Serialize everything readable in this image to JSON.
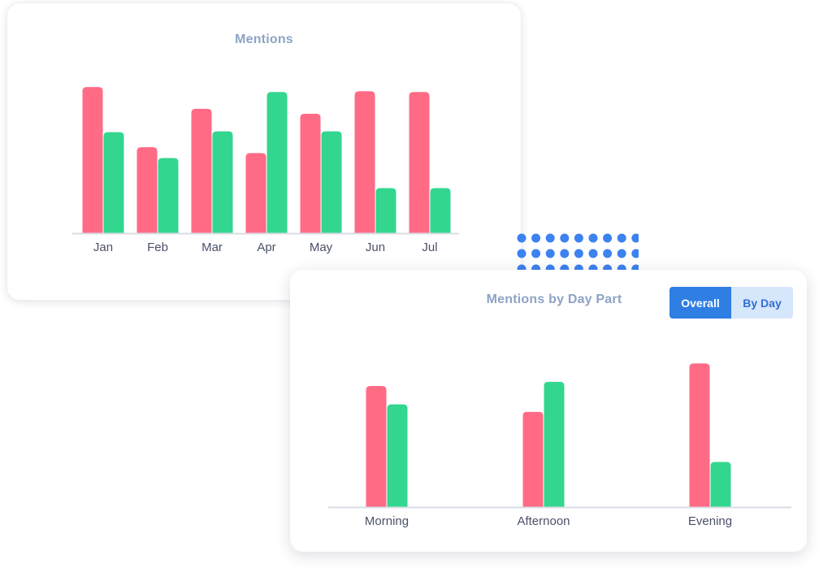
{
  "colors": {
    "series_a": "#ff6b85",
    "series_b": "#33d68f",
    "dots": "#3c82f0",
    "axis": "#d9dde5",
    "tick_text": "#4a5068"
  },
  "toggle": {
    "overall_label": "Overall",
    "by_day_label": "By Day",
    "selected": "Overall"
  },
  "chart_data": [
    {
      "type": "bar",
      "title": "Mentions",
      "categories": [
        "Jan",
        "Feb",
        "Mar",
        "Apr",
        "May",
        "Jun",
        "Jul"
      ],
      "series": [
        {
          "values": [
            175,
            103,
            149,
            96,
            143,
            170,
            169
          ]
        },
        {
          "values": [
            121,
            90,
            122,
            169,
            122,
            54,
            54
          ]
        }
      ],
      "ylim": [
        0,
        180
      ],
      "grid": false
    },
    {
      "type": "bar",
      "title": "Mentions by Day Part",
      "categories": [
        "Morning",
        "Afternoon",
        "Evening"
      ],
      "series": [
        {
          "values": [
            145,
            114,
            172
          ]
        },
        {
          "values": [
            123,
            150,
            54
          ]
        }
      ],
      "ylim": [
        0,
        180
      ],
      "grid": false
    }
  ]
}
